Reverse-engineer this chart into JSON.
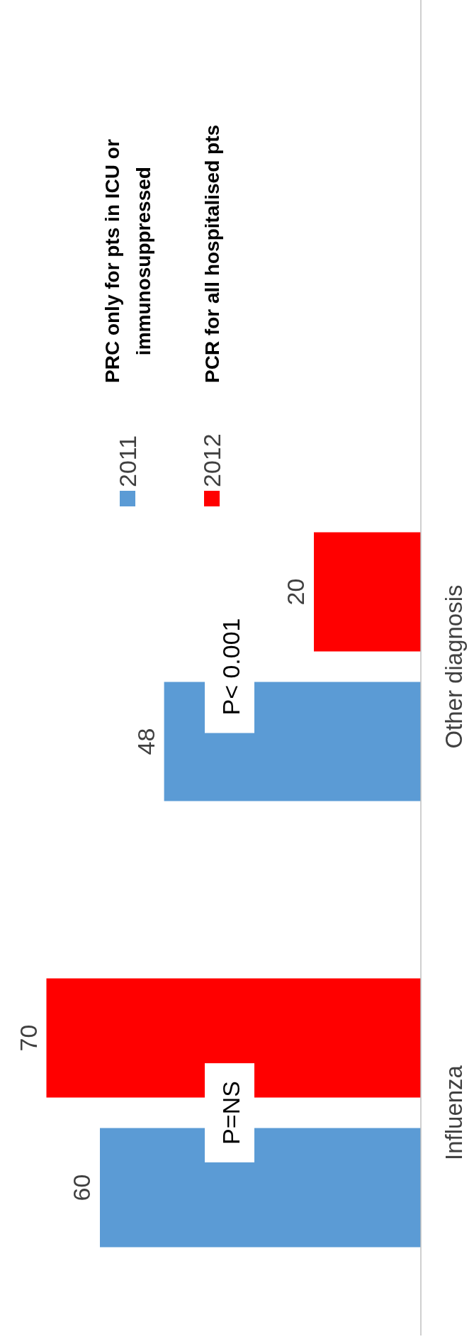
{
  "chart_data": {
    "type": "bar",
    "orientation": "horizontal",
    "categories": [
      "Other diagnosis",
      "Influenza"
    ],
    "series": [
      {
        "name": "2011",
        "color": "#5b9bd5",
        "values": [
          48,
          60
        ]
      },
      {
        "name": "2012",
        "color": "#ff0000",
        "values": [
          20,
          70
        ]
      }
    ],
    "data_labels": true,
    "legend": "top left",
    "annotations": [
      "PRC only for pts in ICU or immunosuppressed",
      "PCR for all hospitalised pts",
      "P< 0.001",
      "P=NS"
    ]
  }
}
